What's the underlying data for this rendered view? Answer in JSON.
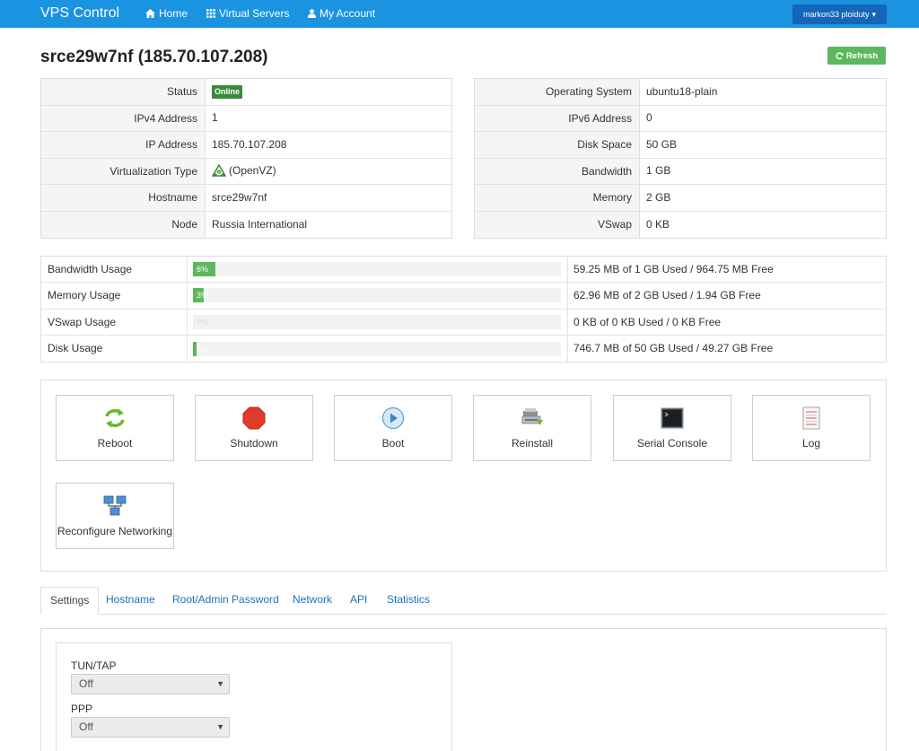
{
  "navbar": {
    "brand": "VPS Control",
    "home": "Home",
    "virtual_servers": "Virtual Servers",
    "my_account": "My Account",
    "user": "markon33 ploiduty"
  },
  "page": {
    "title": "srce29w7nf (185.70.107.208)",
    "refresh": "Refresh"
  },
  "info_left": [
    {
      "label": "Status",
      "value": "Online"
    },
    {
      "label": "IPv4 Address",
      "value": "1"
    },
    {
      "label": "IP Address",
      "value": "185.70.107.208"
    },
    {
      "label": "Virtualization Type",
      "value": "(OpenVZ)"
    },
    {
      "label": "Hostname",
      "value": "srce29w7nf"
    },
    {
      "label": "Node",
      "value": "Russia International"
    }
  ],
  "info_right": [
    {
      "label": "Operating System",
      "value": "ubuntu18-plain"
    },
    {
      "label": "IPv6 Address",
      "value": "0"
    },
    {
      "label": "Disk Space",
      "value": "50 GB"
    },
    {
      "label": "Bandwidth",
      "value": "1 GB"
    },
    {
      "label": "Memory",
      "value": "2 GB"
    },
    {
      "label": "VSwap",
      "value": "0 KB"
    }
  ],
  "usage": [
    {
      "label": "Bandwidth Usage",
      "percent": 6,
      "bar_text": "6%",
      "text": "59.25 MB of 1 GB Used / 964.75 MB Free"
    },
    {
      "label": "Memory Usage",
      "percent": 3,
      "bar_text": "3%",
      "text": "62.96 MB of 2 GB Used / 1.94 GB Free"
    },
    {
      "label": "VSwap Usage",
      "percent": 0,
      "bar_text": "0%",
      "text": "0 KB of 0 KB Used / 0 KB Free"
    },
    {
      "label": "Disk Usage",
      "percent": 1,
      "bar_text": "1%",
      "text": "746.7 MB of 50 GB Used / 49.27 GB Free"
    }
  ],
  "actions": {
    "reboot": "Reboot",
    "shutdown": "Shutdown",
    "boot": "Boot",
    "reinstall": "Reinstall",
    "serial_console": "Serial Console",
    "log": "Log",
    "reconfigure_networking": "Reconfigure Networking"
  },
  "tabs": {
    "settings": "Settings",
    "hostname": "Hostname",
    "root_password": "Root/Admin Password",
    "network": "Network",
    "api": "API",
    "statistics": "Statistics"
  },
  "settings": {
    "tuntap_label": "TUN/TAP",
    "tuntap_value": "Off",
    "ppp_label": "PPP",
    "ppp_value": "Off"
  },
  "colors": {
    "navbar": "#1a93e0",
    "success": "#5cb85c",
    "online_badge": "#3a8a3a",
    "link": "#1a73c0"
  }
}
